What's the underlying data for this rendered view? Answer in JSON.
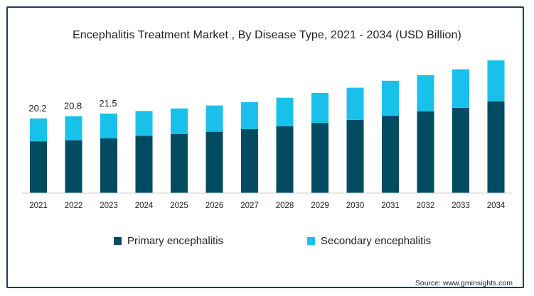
{
  "chart_data": {
    "type": "bar",
    "stacked": true,
    "title": "Encephalitis Treatment Market , By Disease Type, 2021 - 2034 (USD Billion)",
    "categories": [
      "2021",
      "2022",
      "2023",
      "2024",
      "2025",
      "2026",
      "2027",
      "2028",
      "2029",
      "2030",
      "2031",
      "2032",
      "2033",
      "2034"
    ],
    "series": [
      {
        "name": "Primary encephalitis",
        "color": "#034b60",
        "values": [
          14.0,
          14.3,
          14.8,
          15.5,
          16.0,
          16.6,
          17.3,
          18.1,
          19.0,
          19.8,
          20.9,
          22.1,
          23.1,
          24.8
        ]
      },
      {
        "name": "Secondary encephalitis",
        "color": "#19c1ea",
        "values": [
          6.2,
          6.5,
          6.7,
          6.7,
          6.9,
          7.1,
          7.3,
          7.7,
          8.1,
          8.7,
          9.5,
          9.8,
          10.4,
          11.1
        ]
      }
    ],
    "data_labels": [
      "20.2",
      "20.8",
      "21.5"
    ],
    "ylim": [
      0,
      36.5
    ],
    "axes": {
      "y_visible": false,
      "gridlines": false
    },
    "legend_position": "bottom"
  },
  "source": "Source: www.gminsights.com"
}
